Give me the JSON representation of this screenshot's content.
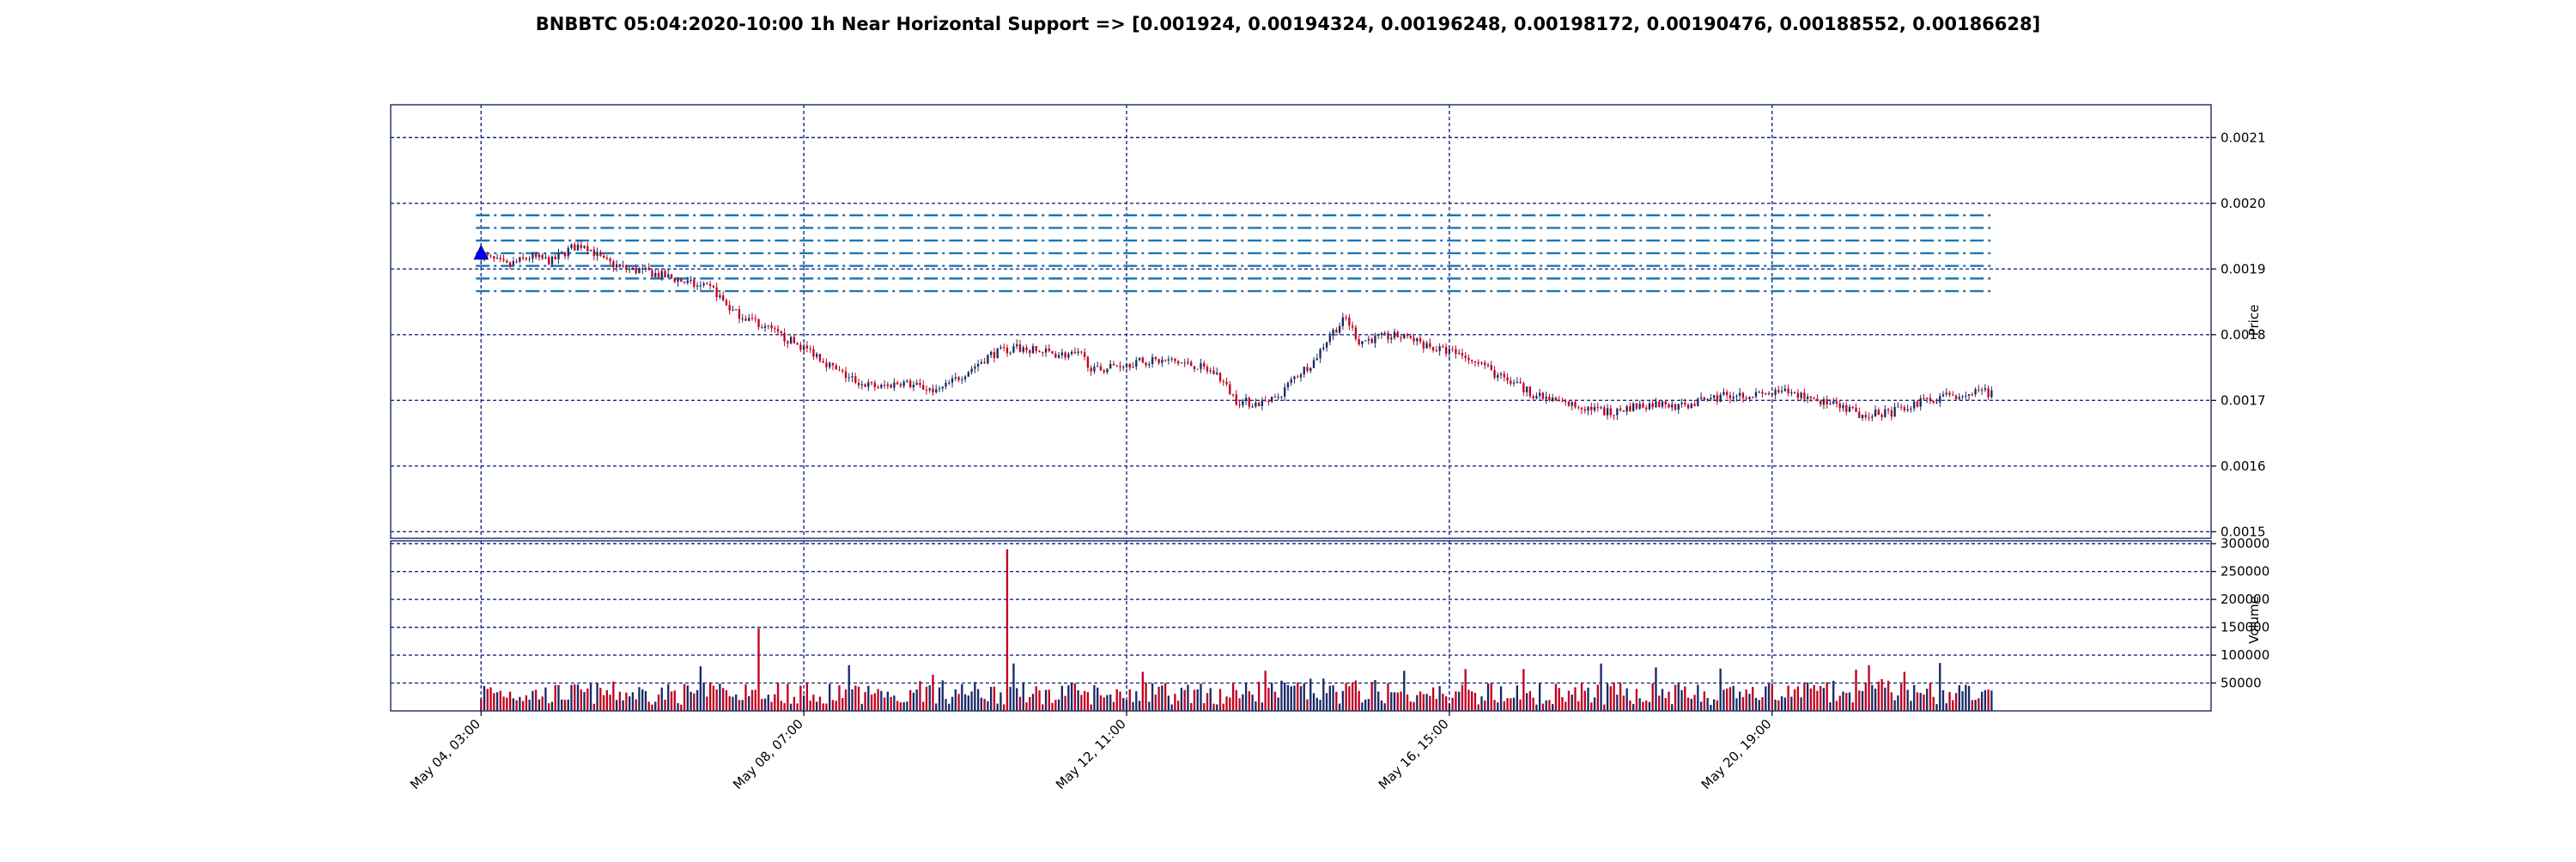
{
  "chart_data": {
    "type": "candlestick",
    "title": "BNBBTC 05:04:2020-10:00 1h Near Horizontal Support => [0.001924, 0.00194324, 0.00196248, 0.00198172, 0.00190476, 0.00188552, 0.00186628]",
    "price_panel": {
      "ylabel": "Price",
      "ylim": [
        0.00149,
        0.00215
      ],
      "yticks": [
        0.0015,
        0.0016,
        0.0017,
        0.0018,
        0.0019,
        0.002,
        0.0021
      ],
      "ytick_labels": [
        "0.0015",
        "0.0016",
        "0.0017",
        "0.0018",
        "0.0019",
        "0.0020",
        "0.0021"
      ],
      "support_levels": [
        0.001924,
        0.00194324,
        0.00196248,
        0.00198172,
        0.00190476,
        0.00188552,
        0.00186628
      ],
      "marker": {
        "shape": "triangle-up",
        "x_hours": 0,
        "price": 0.001924
      }
    },
    "volume_panel": {
      "ylabel": "Volume",
      "ylim": [
        0,
        305000
      ],
      "yticks": [
        50000,
        100000,
        150000,
        200000,
        250000,
        300000
      ],
      "ytick_labels": [
        "50000",
        "100000",
        "150000",
        "200000",
        "250000",
        "300000"
      ]
    },
    "x_axis": {
      "xlim_hours": [
        -28,
        536
      ],
      "ticks_hours": [
        0,
        100,
        200,
        300,
        400
      ],
      "tick_labels": [
        "May 04, 03:00",
        "May 08, 07:00",
        "May 12, 11:00",
        "May 16, 15:00",
        "May 20, 19:00"
      ]
    },
    "n_candles": 469,
    "close_path": [
      [
        0,
        0.001921
      ],
      [
        8,
        0.001905
      ],
      [
        15,
        0.001918
      ],
      [
        22,
        0.001912
      ],
      [
        28,
        0.001932
      ],
      [
        32,
        0.001938
      ],
      [
        38,
        0.001912
      ],
      [
        45,
        0.0019
      ],
      [
        52,
        0.001895
      ],
      [
        60,
        0.001885
      ],
      [
        68,
        0.001872
      ],
      [
        72,
        0.001868
      ],
      [
        78,
        0.001835
      ],
      [
        85,
        0.00182
      ],
      [
        92,
        0.0018
      ],
      [
        98,
        0.001785
      ],
      [
        104,
        0.00177
      ],
      [
        110,
        0.001745
      ],
      [
        118,
        0.001725
      ],
      [
        124,
        0.00172
      ],
      [
        130,
        0.001728
      ],
      [
        136,
        0.00172
      ],
      [
        142,
        0.001715
      ],
      [
        150,
        0.001742
      ],
      [
        158,
        0.00177
      ],
      [
        165,
        0.00178
      ],
      [
        172,
        0.001775
      ],
      [
        180,
        0.00177
      ],
      [
        186,
        0.001768
      ],
      [
        190,
        0.001745
      ],
      [
        198,
        0.001755
      ],
      [
        206,
        0.00176
      ],
      [
        214,
        0.00176
      ],
      [
        222,
        0.001752
      ],
      [
        228,
        0.00174
      ],
      [
        234,
        0.0017
      ],
      [
        240,
        0.001695
      ],
      [
        246,
        0.0017
      ],
      [
        252,
        0.001735
      ],
      [
        258,
        0.00176
      ],
      [
        263,
        0.0018
      ],
      [
        268,
        0.001825
      ],
      [
        272,
        0.00179
      ],
      [
        278,
        0.001795
      ],
      [
        284,
        0.001798
      ],
      [
        290,
        0.00179
      ],
      [
        296,
        0.001778
      ],
      [
        302,
        0.001772
      ],
      [
        308,
        0.001765
      ],
      [
        314,
        0.00174
      ],
      [
        320,
        0.001725
      ],
      [
        328,
        0.001705
      ],
      [
        336,
        0.001695
      ],
      [
        344,
        0.001688
      ],
      [
        350,
        0.00168
      ],
      [
        356,
        0.00169
      ],
      [
        364,
        0.001695
      ],
      [
        372,
        0.00169
      ],
      [
        380,
        0.001702
      ],
      [
        388,
        0.00171
      ],
      [
        396,
        0.001708
      ],
      [
        404,
        0.001712
      ],
      [
        412,
        0.001705
      ],
      [
        420,
        0.00169
      ],
      [
        428,
        0.001678
      ],
      [
        436,
        0.00168
      ],
      [
        444,
        0.001695
      ],
      [
        452,
        0.001705
      ],
      [
        460,
        0.00171
      ],
      [
        468,
        0.001712
      ]
    ],
    "volume_path": [
      [
        0,
        40000
      ],
      [
        20,
        35000
      ],
      [
        40,
        38000
      ],
      [
        60,
        36000
      ],
      [
        80,
        40000
      ],
      [
        100,
        38000
      ],
      [
        120,
        36000
      ],
      [
        140,
        40000
      ],
      [
        160,
        38000
      ],
      [
        180,
        36000
      ],
      [
        200,
        38000
      ],
      [
        220,
        36000
      ],
      [
        240,
        40000
      ],
      [
        260,
        42000
      ],
      [
        280,
        40000
      ],
      [
        300,
        36000
      ],
      [
        320,
        38000
      ],
      [
        340,
        36000
      ],
      [
        360,
        38000
      ],
      [
        380,
        34000
      ],
      [
        400,
        36000
      ],
      [
        420,
        40000
      ],
      [
        440,
        42000
      ],
      [
        468,
        38000
      ]
    ],
    "volume_spikes": [
      [
        68,
        80000
      ],
      [
        86,
        148000
      ],
      [
        114,
        82000
      ],
      [
        140,
        65000
      ],
      [
        163,
        290000
      ],
      [
        165,
        85000
      ],
      [
        205,
        70000
      ],
      [
        243,
        72000
      ],
      [
        286,
        72000
      ],
      [
        305,
        75000
      ],
      [
        323,
        75000
      ],
      [
        347,
        85000
      ],
      [
        364,
        78000
      ],
      [
        384,
        76000
      ],
      [
        426,
        74000
      ],
      [
        430,
        82000
      ],
      [
        441,
        70000
      ],
      [
        452,
        86000
      ],
      [
        469,
        78000
      ]
    ],
    "colors": {
      "up": "#1b2a66",
      "down": "#c2001f",
      "support_line": "#1f77b4",
      "grid": "#1b2a80",
      "marker": "#0000ff"
    }
  }
}
